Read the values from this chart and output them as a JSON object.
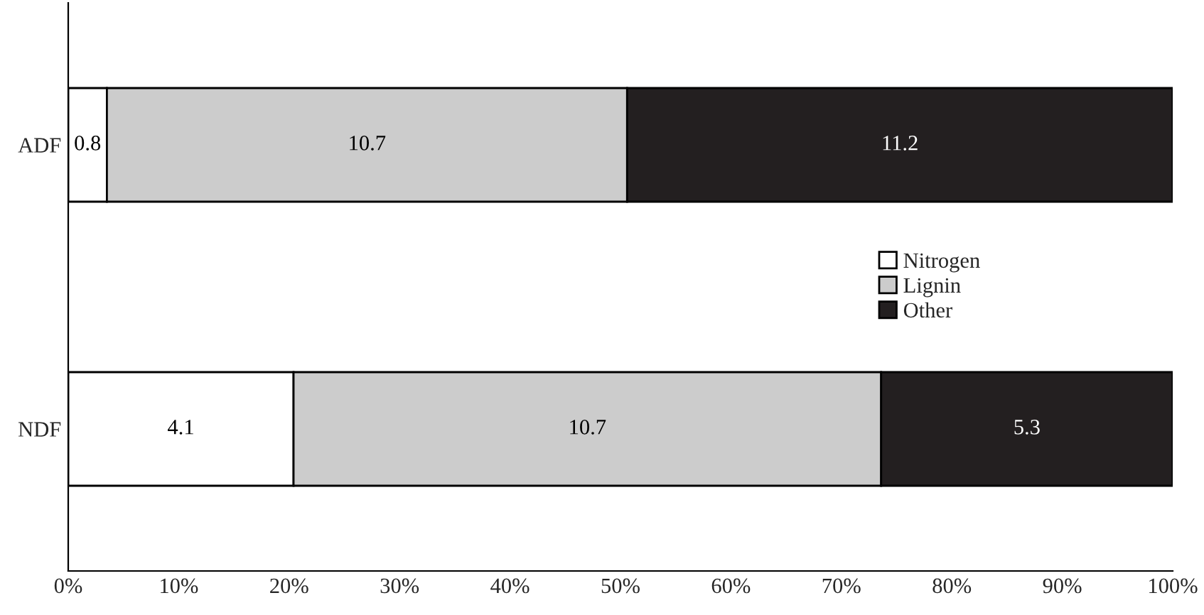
{
  "chart_data": {
    "type": "bar",
    "orientation": "horizontal",
    "stacked": true,
    "categories": [
      "ADF",
      "NDF"
    ],
    "series": [
      {
        "name": "Nitrogen",
        "color": "#ffffff",
        "values": [
          3.5,
          20.4
        ]
      },
      {
        "name": "Lignin",
        "color": "#cccccc",
        "values": [
          47.1,
          53.2
        ]
      },
      {
        "name": "Other",
        "color": "#231f20",
        "values": [
          49.4,
          26.4
        ]
      }
    ],
    "annotations": [
      "0.8",
      "10.7",
      "11.2",
      "4.1",
      "10.7",
      "5.3"
    ],
    "xlim": [
      0,
      100
    ],
    "xticks": [
      {
        "value": 0,
        "label": "0%"
      },
      {
        "value": 10,
        "label": "10%"
      },
      {
        "value": 20,
        "label": "20%"
      },
      {
        "value": 30,
        "label": "30%"
      },
      {
        "value": 40,
        "label": "40%"
      },
      {
        "value": 50,
        "label": "50%"
      },
      {
        "value": 60,
        "label": "60%"
      },
      {
        "value": 70,
        "label": "70%"
      },
      {
        "value": 80,
        "label": "80%"
      },
      {
        "value": 90,
        "label": "90%"
      },
      {
        "value": 100,
        "label": "100%"
      }
    ],
    "legend": "center right",
    "grid": false
  }
}
